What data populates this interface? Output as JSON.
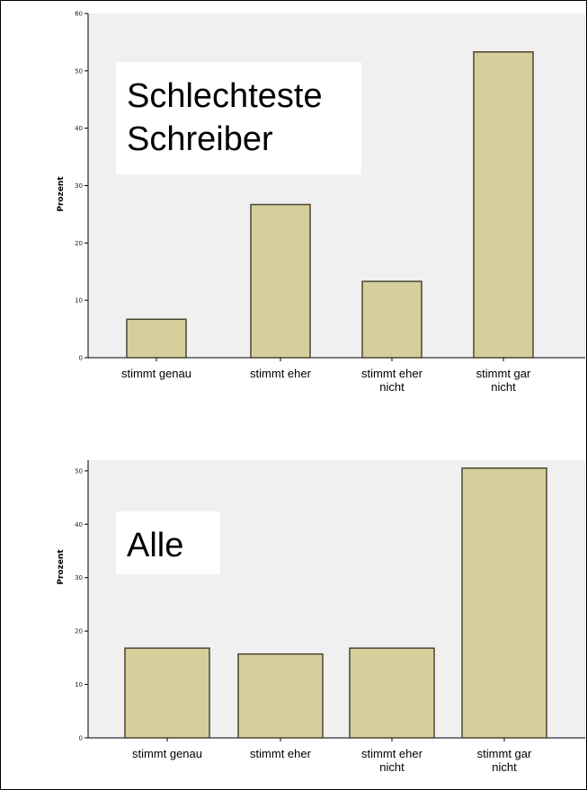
{
  "chart_data": [
    {
      "type": "bar",
      "title": "Schlechteste Schreiber",
      "title_lines": [
        "Schlechteste",
        "Schreiber"
      ],
      "categories": [
        "stimmt genau",
        "stimmt eher",
        "stimmt eher nicht",
        "stimmt gar nicht"
      ],
      "category_lines": [
        [
          "stimmt genau"
        ],
        [
          "stimmt eher"
        ],
        [
          "stimmt eher",
          "nicht"
        ],
        [
          "stimmt gar",
          "nicht"
        ]
      ],
      "values": [
        6.7,
        26.7,
        13.3,
        53.3
      ],
      "ylabel": "Prozent",
      "xlabel": "",
      "ylim": [
        0,
        60
      ],
      "yticks": [
        0,
        10,
        20,
        30,
        40,
        50,
        60
      ],
      "grid": false,
      "colors": {
        "bar": "#d6cf9b",
        "plot_bg": "#f0f0f0",
        "bar_edge": "#4a4632"
      }
    },
    {
      "type": "bar",
      "title": "Alle",
      "title_lines": [
        "Alle"
      ],
      "categories": [
        "stimmt genau",
        "stimmt eher",
        "stimmt eher nicht",
        "stimmt gar nicht"
      ],
      "category_lines": [
        [
          "stimmt genau"
        ],
        [
          "stimmt eher"
        ],
        [
          "stimmt eher",
          "nicht"
        ],
        [
          "stimmt gar",
          "nicht"
        ]
      ],
      "values": [
        16.8,
        15.7,
        16.8,
        50.5
      ],
      "ylabel": "Prozent",
      "xlabel": "",
      "ylim": [
        0,
        52
      ],
      "yticks": [
        0,
        10,
        20,
        30,
        40,
        50
      ],
      "grid": false,
      "colors": {
        "bar": "#d6cf9b",
        "plot_bg": "#f0f0f0",
        "bar_edge": "#4a4632"
      }
    }
  ]
}
